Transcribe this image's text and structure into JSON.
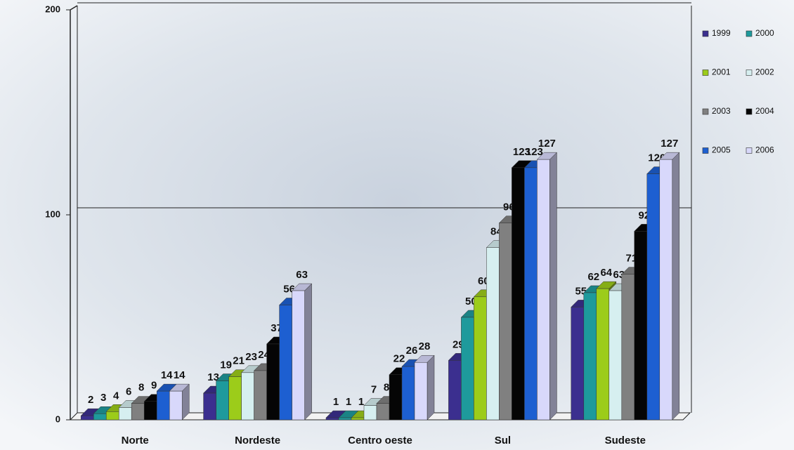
{
  "chart_data": {
    "type": "bar3d",
    "categories": [
      "Norte",
      "Nordeste",
      "Centro oeste",
      "Sul",
      "Sudeste"
    ],
    "series": [
      {
        "name": "1999",
        "color": "#3b2f8f",
        "values": [
          2,
          13,
          1,
          29,
          55
        ]
      },
      {
        "name": "2000",
        "color": "#1e9a9c",
        "values": [
          3,
          19,
          1,
          50,
          62
        ]
      },
      {
        "name": "2001",
        "color": "#9ccc1a",
        "values": [
          4,
          21,
          1,
          60,
          64
        ]
      },
      {
        "name": "2002",
        "color": "#d6eff0",
        "values": [
          6,
          23,
          7,
          84,
          63
        ]
      },
      {
        "name": "2003",
        "color": "#808080",
        "values": [
          8,
          24,
          8,
          96,
          71
        ]
      },
      {
        "name": "2004",
        "color": "#050505",
        "values": [
          9,
          37,
          22,
          123,
          92
        ]
      },
      {
        "name": "2005",
        "color": "#1d5fd1",
        "values": [
          14,
          56,
          26,
          123,
          120
        ]
      },
      {
        "name": "2006",
        "color": "#d8d8fb",
        "values": [
          14,
          63,
          28,
          127,
          127
        ]
      }
    ],
    "ylim": [
      0,
      200
    ],
    "yticks": [
      0,
      100,
      200
    ],
    "grid": true,
    "legend": "right"
  }
}
